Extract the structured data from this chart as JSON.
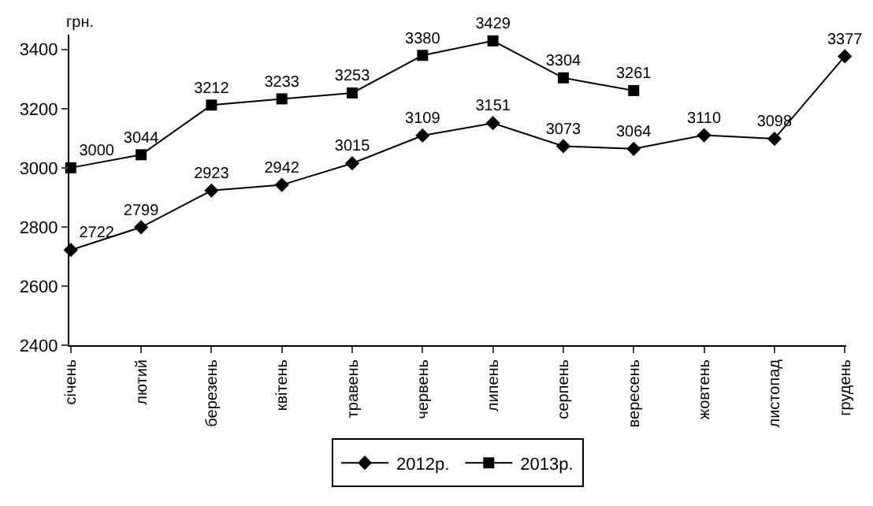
{
  "chart_data": {
    "type": "line",
    "ylabel": "грн.",
    "categories": [
      "січень",
      "лютий",
      "березень",
      "квітень",
      "травень",
      "червень",
      "липень",
      "серпень",
      "вересень",
      "жовтень",
      "листопад",
      "грудень"
    ],
    "series": [
      {
        "name": "2012р.",
        "color": "#000000",
        "marker": "diamond",
        "values": [
          2722,
          2799,
          2923,
          2942,
          3015,
          3109,
          3151,
          3073,
          3064,
          3110,
          3098,
          3377
        ]
      },
      {
        "name": "2013р.",
        "color": "#000000",
        "marker": "square",
        "values": [
          3000,
          3044,
          3212,
          3233,
          3253,
          3380,
          3429,
          3304,
          3261,
          null,
          null,
          null
        ]
      }
    ],
    "ylim": [
      2400,
      3450
    ],
    "yticks": [
      2400,
      2600,
      2800,
      3000,
      3200,
      3400
    ],
    "data_labels": true,
    "grid": false,
    "legend": "bottom",
    "line_style": "solid"
  }
}
